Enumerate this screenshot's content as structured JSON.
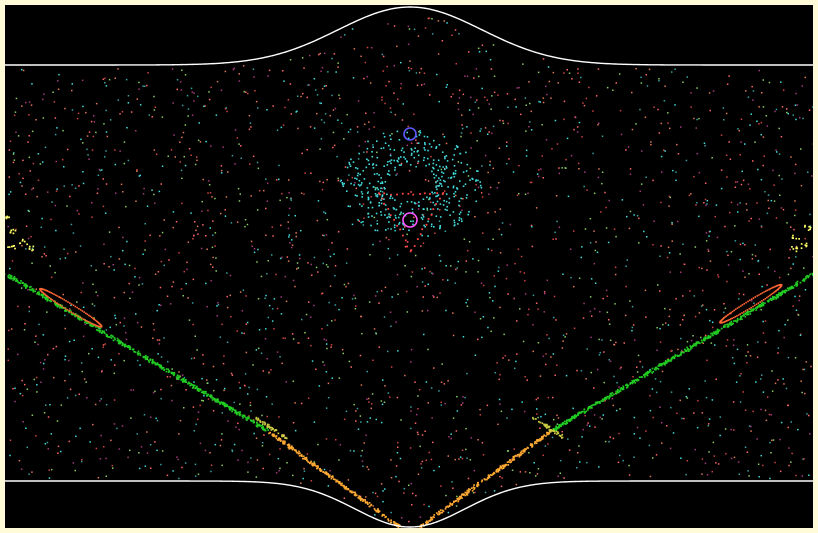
{
  "figure": {
    "background": "#000000",
    "frame_color": "#fffbd9",
    "boundary_color": "#ffffff",
    "marker_colors": {
      "upper_island": "#5b5bff",
      "center_island": "#ff55ff"
    },
    "trajectory_colors": {
      "chaotic": [
        "#44dddd",
        "#cc4444",
        "#ff6666",
        "#3aa0a0",
        "#a03a7a",
        "#88cc66",
        "#dd7755"
      ],
      "upper_cloud": "#44dddd",
      "triangle": "#ff4444",
      "left_strand": "#22cc22",
      "left_ellipse": "#ff6633",
      "lower_strand": "#ffaa33",
      "lower_tip": "#cccc44",
      "edge_glyphs": "#ffff66"
    }
  }
}
